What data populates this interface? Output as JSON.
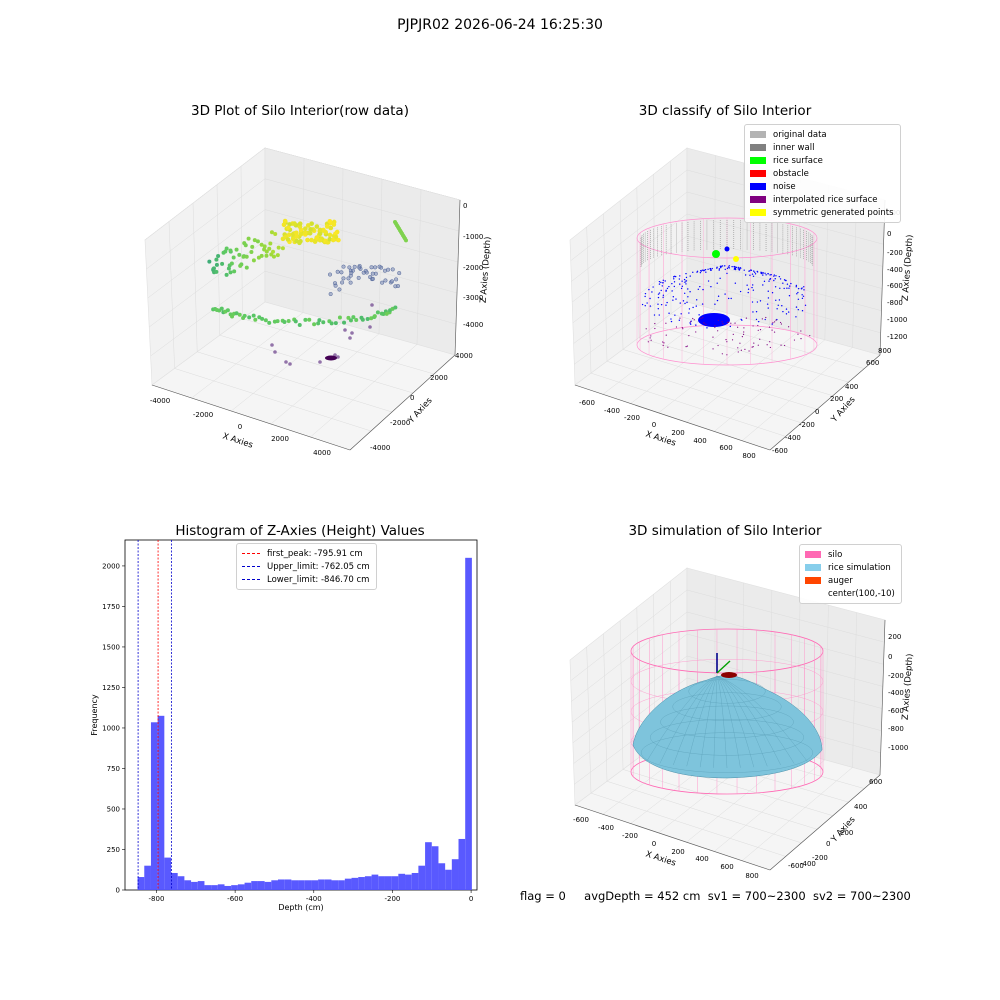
{
  "suptitle": "PJPJR02 2026-06-24 16:25:30",
  "panels": {
    "raw": {
      "title": "3D Plot of Silo Interior(row data)",
      "xlabel": "X Axies",
      "ylabel": "Y Axies",
      "zlabel": "Z Axies (Depth)",
      "xticks": [
        "-4000",
        "-2000",
        "0",
        "2000",
        "4000"
      ],
      "yticks": [
        "-4000",
        "-2000",
        "0",
        "2000",
        "4000"
      ],
      "zticks": [
        "0",
        "-1000",
        "-2000",
        "-3000",
        "-4000"
      ]
    },
    "classify": {
      "title": "3D classify of Silo Interior",
      "xlabel": "X Axies",
      "ylabel": "Y Axies",
      "zlabel": "Z Axies (Depth)",
      "xticks": [
        "-600",
        "-400",
        "-200",
        "0",
        "200",
        "400",
        "600",
        "800"
      ],
      "yticks": [
        "800",
        "600",
        "400",
        "200",
        "0",
        "-200",
        "-400",
        "-600"
      ],
      "zticks": [
        "200",
        "0",
        "-200",
        "-400",
        "-600",
        "-800",
        "-1000",
        "-1200"
      ],
      "legend": [
        {
          "label": "original data",
          "color": "#b3b3b3"
        },
        {
          "label": "inner wall",
          "color": "#808080"
        },
        {
          "label": "rice surface",
          "color": "#00ff00"
        },
        {
          "label": "obstacle",
          "color": "#ff0000"
        },
        {
          "label": "noise",
          "color": "#0000ff"
        },
        {
          "label": "interpolated rice surface",
          "color": "#800080"
        },
        {
          "label": "symmetric generated points",
          "color": "#ffff00"
        }
      ]
    },
    "histogram": {
      "title": "Histogram of Z-Axies (Height) Values",
      "xlabel": "Depth (cm)",
      "ylabel": "Frequency",
      "xticks": [
        "-800",
        "-600",
        "-400",
        "-200",
        "0"
      ],
      "yticks": [
        "0",
        "250",
        "500",
        "750",
        "1000",
        "1250",
        "1500",
        "1750",
        "2000"
      ],
      "legend": [
        {
          "label": "first_peak: -795.91 cm",
          "color": "#ff0000"
        },
        {
          "label": "Upper_limit: -762.05 cm",
          "color": "#0000cc"
        },
        {
          "label": "Lower_limit: -846.70 cm",
          "color": "#0000cc"
        }
      ]
    },
    "simulation": {
      "title": "3D simulation of Silo Interior",
      "xlabel": "X Axies",
      "ylabel": "Y Axies",
      "zlabel": "Z Axies (Depth)",
      "xticks": [
        "-600",
        "-400",
        "-200",
        "0",
        "200",
        "400",
        "600",
        "800"
      ],
      "yticks": [
        "600",
        "400",
        "200",
        "0",
        "-200",
        "-400",
        "-600"
      ],
      "zticks": [
        "200",
        "0",
        "-200",
        "-400",
        "-600",
        "-800",
        "-1000"
      ],
      "legend": [
        {
          "label": "silo",
          "color": "#ff69b4"
        },
        {
          "label": "rice simulation",
          "color": "#87ceeb"
        },
        {
          "label": "auger",
          "color": "#ff4500"
        },
        {
          "label": "center(100,-10)",
          "color": ""
        }
      ]
    }
  },
  "status": {
    "flag": "flag = 0",
    "avg_depth": "avgDepth = 452 cm",
    "sv1": "sv1 = 700~2300",
    "sv2": "sv2 = 700~2300"
  },
  "chart_data": [
    {
      "type": "scatter",
      "title": "3D Plot of Silo Interior(row data)",
      "xlabel": "X Axies",
      "ylabel": "Y Axies",
      "zlabel": "Z Axies (Depth)",
      "xlim": [
        -5000,
        5000
      ],
      "ylim": [
        -5000,
        5000
      ],
      "zlim": [
        -4500,
        0
      ],
      "colormap": "viridis"
    },
    {
      "type": "scatter",
      "title": "3D classify of Silo Interior",
      "xlabel": "X Axies",
      "ylabel": "Y Axies",
      "zlabel": "Z Axies (Depth)",
      "xlim": [
        -700,
        850
      ],
      "ylim": [
        -700,
        850
      ],
      "zlim": [
        -1250,
        250
      ],
      "legend_position": "top-right"
    },
    {
      "type": "bar",
      "title": "Histogram of Z-Axies (Height) Values",
      "xlabel": "Depth (cm)",
      "ylabel": "Frequency",
      "xlim": [
        -880,
        15
      ],
      "ylim": [
        0,
        2160
      ],
      "bin_width": 17,
      "bin_start": -848,
      "values": [
        80,
        150,
        1035,
        1075,
        200,
        105,
        85,
        60,
        50,
        55,
        30,
        30,
        35,
        25,
        30,
        35,
        45,
        55,
        55,
        50,
        60,
        65,
        65,
        60,
        60,
        60,
        60,
        65,
        65,
        60,
        60,
        70,
        75,
        80,
        85,
        95,
        85,
        85,
        85,
        100,
        95,
        105,
        150,
        295,
        270,
        165,
        125,
        190,
        315,
        2050
      ],
      "vlines": [
        {
          "name": "first_peak",
          "x": -795.91,
          "color": "#ff0000"
        },
        {
          "name": "Upper_limit",
          "x": -762.05,
          "color": "#0000cc"
        },
        {
          "name": "Lower_limit",
          "x": -846.7,
          "color": "#0000cc"
        }
      ],
      "bar_color": "#5050ff",
      "legend_position": "top-center"
    },
    {
      "type": "surface",
      "title": "3D simulation of Silo Interior",
      "xlabel": "X Axies",
      "ylabel": "Y Axies",
      "zlabel": "Z Axies (Depth)",
      "xlim": [
        -700,
        850
      ],
      "ylim": [
        -700,
        700
      ],
      "zlim": [
        -1100,
        300
      ],
      "center": [
        100,
        -10
      ],
      "legend_position": "top-right"
    }
  ]
}
